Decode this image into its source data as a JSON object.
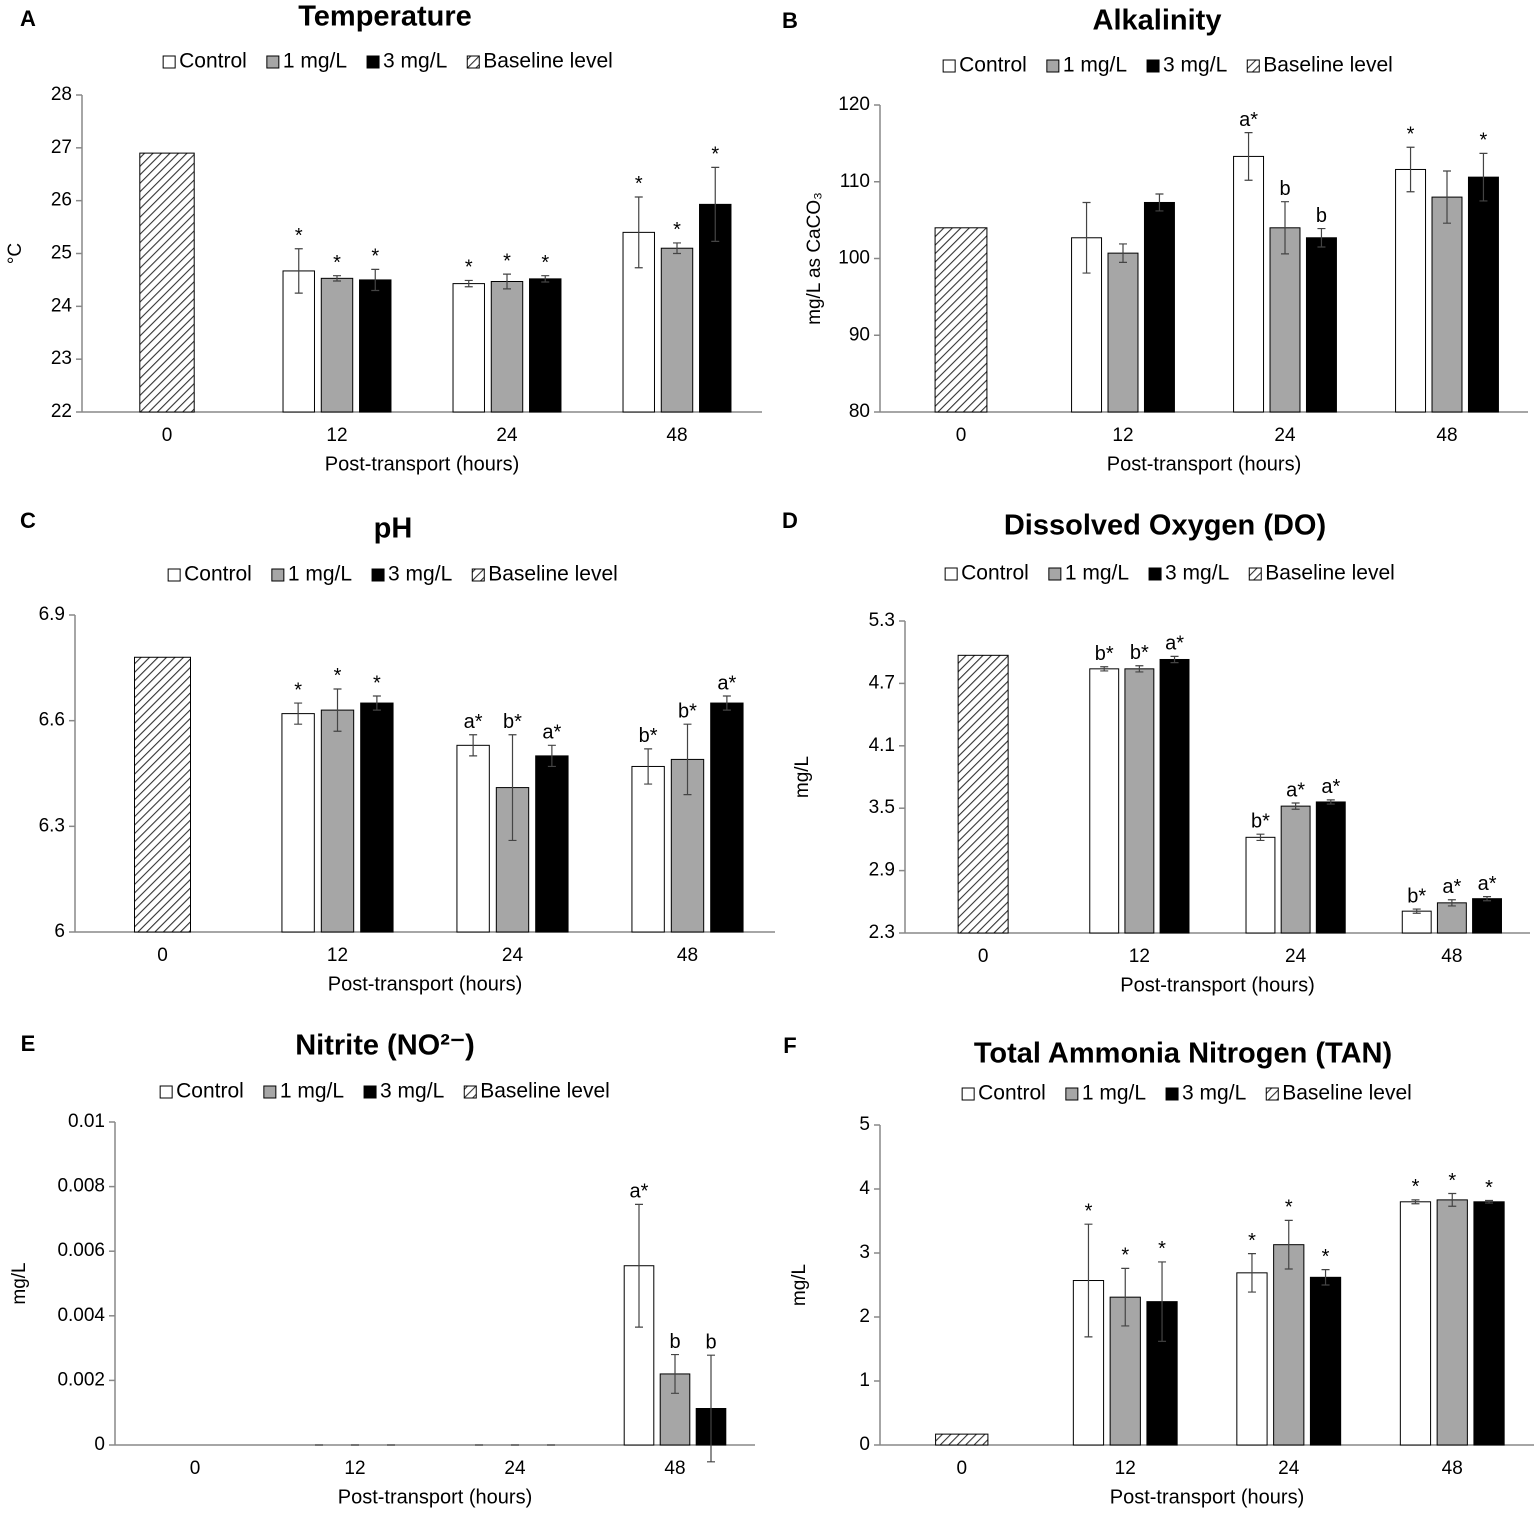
{
  "chart_data": [
    {
      "type": "bar",
      "panel": "A",
      "title": "Temperature",
      "y_label": "°C",
      "x_label": "Post-transport (hours)",
      "categories": [
        "0",
        "12",
        "24",
        "48"
      ],
      "ylim": [
        22,
        28
      ],
      "yticks": [
        22,
        23,
        24,
        25,
        26,
        27,
        28
      ],
      "series": [
        {
          "name": "Control",
          "color": "#ffffff",
          "values": [
            null,
            24.67,
            24.43,
            25.4
          ],
          "errors": [
            null,
            0.42,
            0.06,
            0.67
          ],
          "annotations": [
            null,
            "*",
            "*",
            "*"
          ]
        },
        {
          "name": "1 mg/L",
          "color": "#a6a6a6",
          "values": [
            null,
            24.53,
            24.47,
            25.1
          ],
          "errors": [
            null,
            0.05,
            0.14,
            0.1
          ],
          "annotations": [
            null,
            "*",
            "*",
            "*"
          ]
        },
        {
          "name": "3 mg/L",
          "color": "#000000",
          "values": [
            null,
            24.5,
            24.52,
            25.93
          ],
          "errors": [
            null,
            0.2,
            0.06,
            0.7
          ],
          "annotations": [
            null,
            "*",
            "*",
            "*"
          ]
        },
        {
          "name": "Baseline level",
          "pattern": "hatch",
          "values": [
            26.9,
            null,
            null,
            null
          ]
        }
      ]
    },
    {
      "type": "bar",
      "panel": "B",
      "title": "Alkalinity",
      "y_label": "mg/L as CaCO₃",
      "x_label": "Post-transport (hours)",
      "categories": [
        "0",
        "12",
        "24",
        "48"
      ],
      "ylim": [
        80,
        120
      ],
      "yticks": [
        80,
        90,
        100,
        110,
        120
      ],
      "series": [
        {
          "name": "Control",
          "color": "#ffffff",
          "values": [
            null,
            102.7,
            113.3,
            111.6
          ],
          "errors": [
            null,
            4.6,
            3.1,
            2.9
          ],
          "annotations": [
            null,
            null,
            "a*",
            "*"
          ]
        },
        {
          "name": "1 mg/L",
          "color": "#a6a6a6",
          "values": [
            null,
            100.7,
            104,
            108
          ],
          "errors": [
            null,
            1.2,
            3.4,
            3.4
          ],
          "annotations": [
            null,
            null,
            "b",
            null
          ]
        },
        {
          "name": "3 mg/L",
          "color": "#000000",
          "values": [
            null,
            107.3,
            102.7,
            110.6
          ],
          "errors": [
            null,
            1.1,
            1.2,
            3.1
          ],
          "annotations": [
            null,
            null,
            "b",
            "*"
          ]
        },
        {
          "name": "Baseline level",
          "pattern": "hatch",
          "values": [
            104,
            null,
            null,
            null
          ]
        }
      ]
    },
    {
      "type": "bar",
      "panel": "C",
      "title": "pH",
      "x_label": "Post-transport (hours)",
      "categories": [
        "0",
        "12",
        "24",
        "48"
      ],
      "ylim": [
        6,
        6.9
      ],
      "yticks": [
        6,
        6.3,
        6.6,
        6.9
      ],
      "series": [
        {
          "name": "Control",
          "color": "#ffffff",
          "values": [
            null,
            6.62,
            6.53,
            6.47
          ],
          "errors": [
            null,
            0.03,
            0.03,
            0.05
          ],
          "annotations": [
            null,
            "*",
            "a*",
            "b*"
          ]
        },
        {
          "name": "1 mg/L",
          "color": "#a6a6a6",
          "values": [
            null,
            6.63,
            6.41,
            6.49
          ],
          "errors": [
            null,
            0.06,
            0.15,
            0.1
          ],
          "annotations": [
            null,
            "*",
            "b*",
            "b*"
          ]
        },
        {
          "name": "3 mg/L",
          "color": "#000000",
          "values": [
            null,
            6.65,
            6.5,
            6.65
          ],
          "errors": [
            null,
            0.02,
            0.03,
            0.02
          ],
          "annotations": [
            null,
            "*",
            "a*",
            "a*"
          ]
        },
        {
          "name": "Baseline level",
          "pattern": "hatch",
          "values": [
            6.78,
            null,
            null,
            null
          ]
        }
      ]
    },
    {
      "type": "bar",
      "panel": "D",
      "title": "Dissolved Oxygen (DO)",
      "y_label": "mg/L",
      "x_label": "Post-transport (hours)",
      "categories": [
        "0",
        "12",
        "24",
        "48"
      ],
      "ylim": [
        2.3,
        5.3
      ],
      "yticks": [
        2.3,
        2.9,
        3.5,
        4.1,
        4.7,
        5.3
      ],
      "series": [
        {
          "name": "Control",
          "color": "#ffffff",
          "values": [
            null,
            4.84,
            3.22,
            2.51
          ],
          "errors": [
            null,
            0.02,
            0.03,
            0.02
          ],
          "annotations": [
            null,
            "b*",
            "b*",
            "b*"
          ]
        },
        {
          "name": "1 mg/L",
          "color": "#a6a6a6",
          "values": [
            null,
            4.84,
            3.52,
            2.59
          ],
          "errors": [
            null,
            0.03,
            0.03,
            0.03
          ],
          "annotations": [
            null,
            "b*",
            "a*",
            "a*"
          ]
        },
        {
          "name": "3 mg/L",
          "color": "#000000",
          "values": [
            null,
            4.93,
            3.56,
            2.63
          ],
          "errors": [
            null,
            0.03,
            0.02,
            0.02
          ],
          "annotations": [
            null,
            "a*",
            "a*",
            "a*"
          ]
        },
        {
          "name": "Baseline level",
          "pattern": "hatch",
          "values": [
            4.97,
            null,
            null,
            null
          ]
        }
      ]
    },
    {
      "type": "bar",
      "panel": "E",
      "title": "Nitrite (NO²⁻)",
      "y_label": "mg/L",
      "x_label": "Post-transport (hours)",
      "categories": [
        "0",
        "12",
        "24",
        "48"
      ],
      "ylim": [
        0,
        0.01
      ],
      "yticks": [
        0,
        0.002,
        0.004,
        0.006,
        0.008,
        0.01
      ],
      "series": [
        {
          "name": "Control",
          "color": "#ffffff",
          "values": [
            null,
            0,
            0,
            0.00555
          ],
          "errors": [
            null,
            0,
            0,
            0.0019
          ],
          "annotations": [
            null,
            null,
            null,
            "a*"
          ]
        },
        {
          "name": "1 mg/L",
          "color": "#a6a6a6",
          "values": [
            null,
            0,
            0,
            0.0022
          ],
          "errors": [
            null,
            0,
            0,
            0.0006
          ],
          "annotations": [
            null,
            null,
            null,
            "b"
          ]
        },
        {
          "name": "3 mg/L",
          "color": "#000000",
          "values": [
            null,
            0,
            0,
            0.00113
          ],
          "errors": [
            null,
            0,
            0,
            0.00165
          ],
          "annotations": [
            null,
            null,
            null,
            "b"
          ]
        },
        {
          "name": "Baseline level",
          "pattern": "hatch",
          "values": [
            0,
            null,
            null,
            null
          ]
        }
      ]
    },
    {
      "type": "bar",
      "panel": "F",
      "title": "Total Ammonia Nitrogen (TAN)",
      "y_label": "mg/L",
      "x_label": "Post-transport (hours)",
      "categories": [
        "0",
        "12",
        "24",
        "48"
      ],
      "ylim": [
        0,
        5
      ],
      "yticks": [
        0,
        1,
        2,
        3,
        4,
        5
      ],
      "series": [
        {
          "name": "Control",
          "color": "#ffffff",
          "values": [
            null,
            2.57,
            2.69,
            3.8
          ],
          "errors": [
            null,
            0.88,
            0.3,
            0.03
          ],
          "annotations": [
            null,
            "*",
            "*",
            "*"
          ]
        },
        {
          "name": "1 mg/L",
          "color": "#a6a6a6",
          "values": [
            null,
            2.31,
            3.13,
            3.83
          ],
          "errors": [
            null,
            0.45,
            0.38,
            0.1
          ],
          "annotations": [
            null,
            "*",
            "*",
            "*"
          ]
        },
        {
          "name": "3 mg/L",
          "color": "#000000",
          "values": [
            null,
            2.24,
            2.62,
            3.8
          ],
          "errors": [
            null,
            0.62,
            0.12,
            0.02
          ],
          "annotations": [
            null,
            "*",
            "*",
            "*"
          ]
        },
        {
          "name": "Baseline level",
          "pattern": "hatch",
          "values": [
            0.17,
            null,
            null,
            null
          ]
        }
      ]
    }
  ]
}
